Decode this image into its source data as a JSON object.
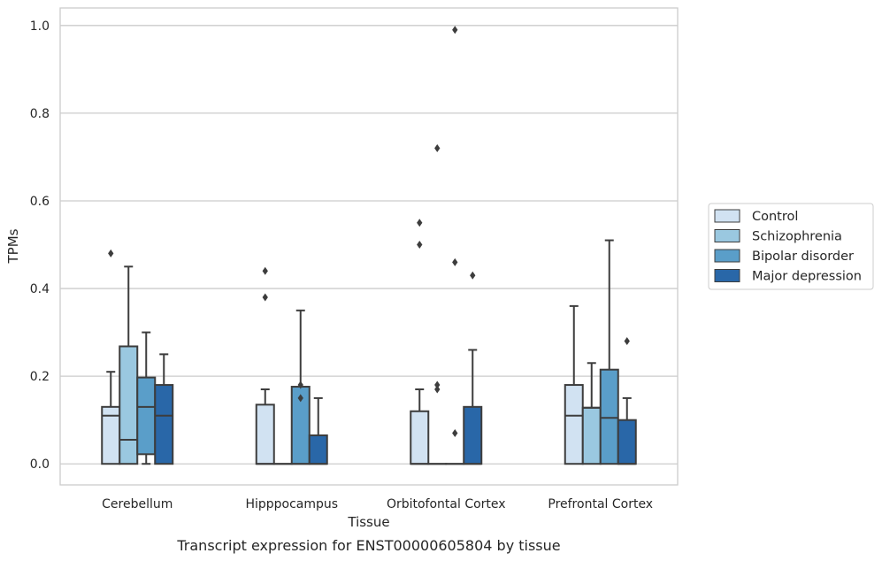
{
  "caption": "Transcript expression for ENST00000605804 by tissue",
  "chart_data": {
    "type": "box",
    "xlabel": "Tissue",
    "ylabel": "TPMs",
    "ylim": [
      -0.048,
      1.04
    ],
    "yticks": [
      0.0,
      0.2,
      0.4,
      0.6,
      0.8,
      1.0
    ],
    "ytick_labels": [
      "0.0",
      "0.2",
      "0.4",
      "0.6",
      "0.8",
      "1.0"
    ],
    "grid": "horizontal",
    "legend_position": "right",
    "categories": [
      "Cerebellum",
      "Hipppocampus",
      "Orbitofontal Cortex",
      "Prefrontal Cortex"
    ],
    "series": [
      {
        "name": "Control",
        "color": "#d1e2f2",
        "boxes": [
          {
            "whislo": 0.0,
            "q1": 0.0,
            "med": 0.11,
            "q3": 0.13,
            "whishi": 0.21,
            "fliers": [
              0.48
            ]
          },
          {
            "whislo": 0.0,
            "q1": 0.0,
            "med": 0.0,
            "q3": 0.135,
            "whishi": 0.17,
            "fliers": [
              0.38,
              0.44
            ]
          },
          {
            "whislo": 0.0,
            "q1": 0.0,
            "med": 0.0,
            "q3": 0.12,
            "whishi": 0.17,
            "fliers": [
              0.5,
              0.55
            ]
          },
          {
            "whislo": 0.0,
            "q1": 0.0,
            "med": 0.11,
            "q3": 0.18,
            "whishi": 0.36,
            "fliers": []
          }
        ]
      },
      {
        "name": "Schizophrenia",
        "color": "#9ac8e0",
        "boxes": [
          {
            "whislo": 0.0,
            "q1": 0.0,
            "med": 0.055,
            "q3": 0.268,
            "whishi": 0.45,
            "fliers": []
          },
          {
            "whislo": 0.0,
            "q1": 0.0,
            "med": 0.0,
            "q3": 0.0,
            "whishi": 0.0,
            "fliers": []
          },
          {
            "whislo": 0.0,
            "q1": 0.0,
            "med": 0.0,
            "q3": 0.0,
            "whishi": 0.0,
            "fliers": [
              0.17,
              0.18,
              0.72
            ]
          },
          {
            "whislo": 0.0,
            "q1": 0.0,
            "med": 0.128,
            "q3": 0.128,
            "whishi": 0.23,
            "fliers": []
          }
        ]
      },
      {
        "name": "Bipolar disorder",
        "color": "#5a9ec9",
        "boxes": [
          {
            "whislo": 0.0,
            "q1": 0.022,
            "med": 0.13,
            "q3": 0.197,
            "whishi": 0.3,
            "fliers": []
          },
          {
            "whislo": 0.0,
            "q1": 0.0,
            "med": 0.0,
            "q3": 0.176,
            "whishi": 0.35,
            "fliers": [
              0.15,
              0.18
            ]
          },
          {
            "whislo": 0.0,
            "q1": 0.0,
            "med": 0.0,
            "q3": 0.0,
            "whishi": 0.0,
            "fliers": [
              0.07,
              0.46,
              0.99
            ]
          },
          {
            "whislo": 0.0,
            "q1": 0.0,
            "med": 0.105,
            "q3": 0.215,
            "whishi": 0.51,
            "fliers": []
          }
        ]
      },
      {
        "name": "Major depression",
        "color": "#2967a8",
        "boxes": [
          {
            "whislo": 0.0,
            "q1": 0.0,
            "med": 0.11,
            "q3": 0.18,
            "whishi": 0.25,
            "fliers": []
          },
          {
            "whislo": 0.0,
            "q1": 0.0,
            "med": 0.0,
            "q3": 0.065,
            "whishi": 0.15,
            "fliers": []
          },
          {
            "whislo": 0.0,
            "q1": 0.0,
            "med": 0.0,
            "q3": 0.13,
            "whishi": 0.26,
            "fliers": [
              0.43
            ]
          },
          {
            "whislo": 0.0,
            "q1": 0.0,
            "med": 0.0,
            "q3": 0.1,
            "whishi": 0.15,
            "fliers": [
              0.28
            ]
          }
        ]
      }
    ]
  }
}
